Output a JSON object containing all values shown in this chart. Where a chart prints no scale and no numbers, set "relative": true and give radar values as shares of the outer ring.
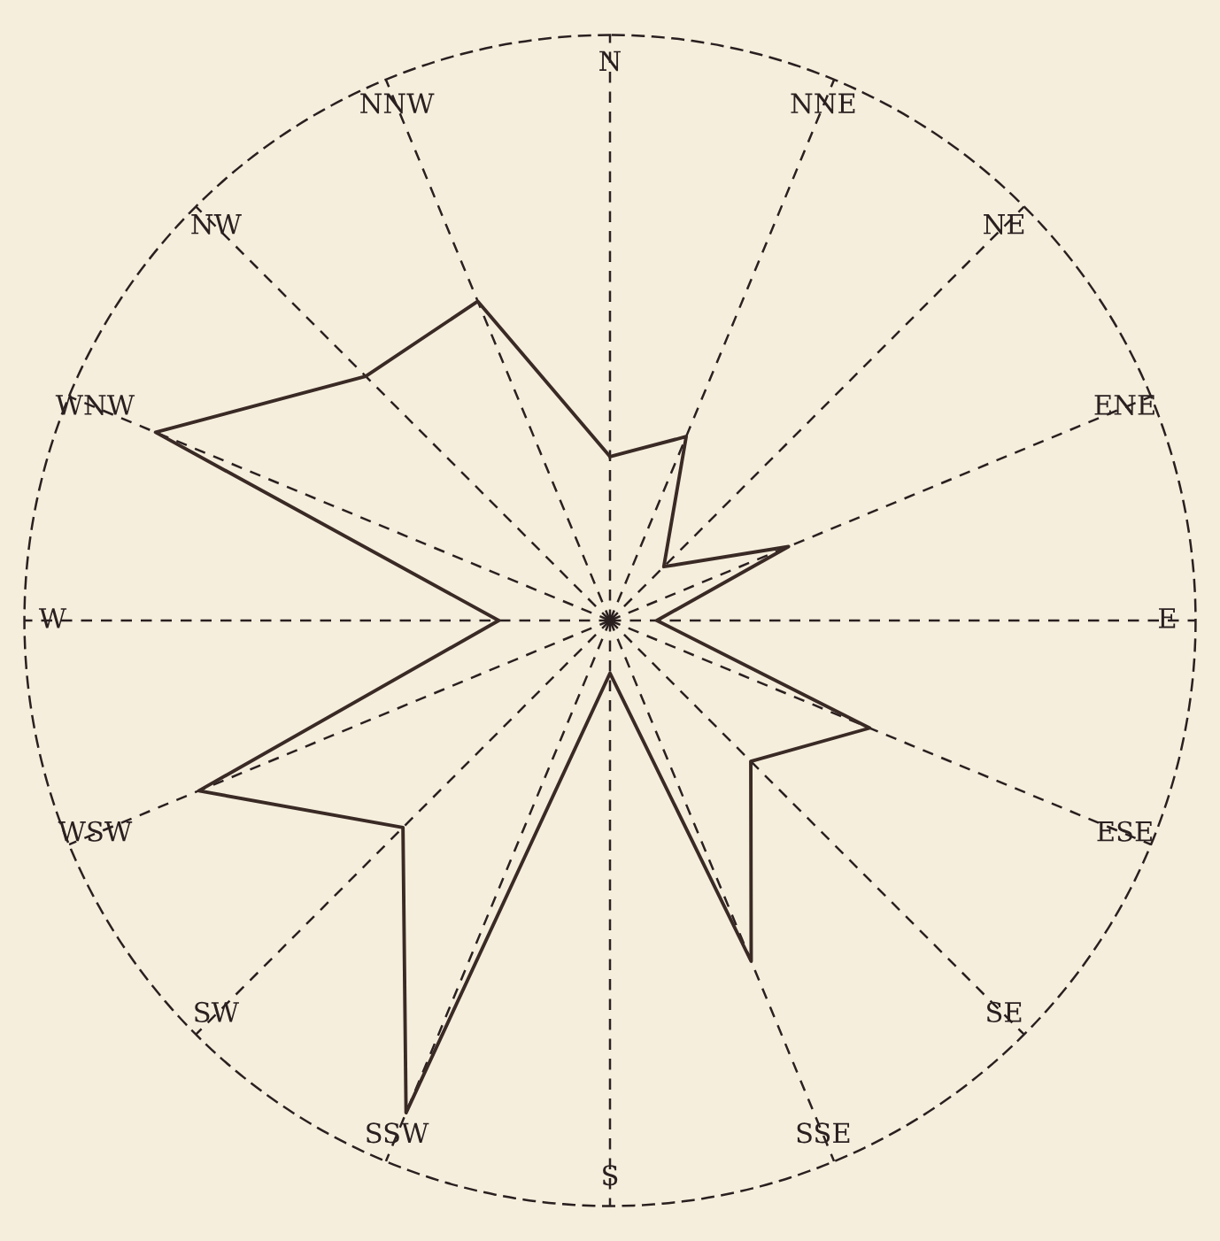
{
  "chart_data": {
    "type": "radar",
    "relative": true,
    "grid": true,
    "categories": [
      "N",
      "NNE",
      "NE",
      "ENE",
      "E",
      "ESE",
      "SE",
      "SSE",
      "S",
      "SSW",
      "SW",
      "WSW",
      "W",
      "WNW",
      "NW",
      "NNW"
    ],
    "series": [
      {
        "color": "#3a2a25",
        "values": [
          0.28,
          0.34,
          0.13,
          0.33,
          0.08,
          0.48,
          0.34,
          0.63,
          0.09,
          0.91,
          0.5,
          0.76,
          0.19,
          0.84,
          0.59,
          0.59
        ]
      }
    ]
  }
}
